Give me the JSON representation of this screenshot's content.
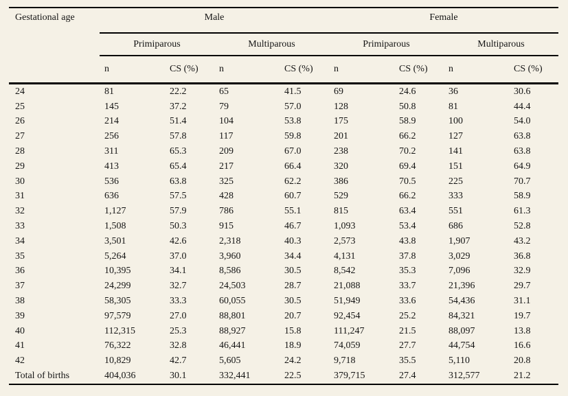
{
  "page": {
    "background_color": "#f5f1e6",
    "rule_color": "#000000",
    "text_color": "#141414"
  },
  "table": {
    "corner_header": "Gestational age",
    "group_headers": [
      "Male",
      "Female"
    ],
    "subgroup_headers": [
      "Primiparous",
      "Multiparous",
      "Primiparous",
      "Multiparous"
    ],
    "leaf_headers": [
      "n",
      "CS (%)",
      "n",
      "CS (%)",
      "n",
      "CS (%)",
      "n",
      "CS (%)"
    ],
    "rows": [
      {
        "label": "24",
        "values": [
          "81",
          "22.2",
          "65",
          "41.5",
          "69",
          "24.6",
          "36",
          "30.6"
        ]
      },
      {
        "label": "25",
        "values": [
          "145",
          "37.2",
          "79",
          "57.0",
          "128",
          "50.8",
          "81",
          "44.4"
        ]
      },
      {
        "label": "26",
        "values": [
          "214",
          "51.4",
          "104",
          "53.8",
          "175",
          "58.9",
          "100",
          "54.0"
        ]
      },
      {
        "label": "27",
        "values": [
          "256",
          "57.8",
          "117",
          "59.8",
          "201",
          "66.2",
          "127",
          "63.8"
        ]
      },
      {
        "label": "28",
        "values": [
          "311",
          "65.3",
          "209",
          "67.0",
          "238",
          "70.2",
          "141",
          "63.8"
        ]
      },
      {
        "label": "29",
        "values": [
          "413",
          "65.4",
          "217",
          "66.4",
          "320",
          "69.4",
          "151",
          "64.9"
        ]
      },
      {
        "label": "30",
        "values": [
          "536",
          "63.8",
          "325",
          "62.2",
          "386",
          "70.5",
          "225",
          "70.7"
        ]
      },
      {
        "label": "31",
        "values": [
          "636",
          "57.5",
          "428",
          "60.7",
          "529",
          "66.2",
          "333",
          "58.9"
        ]
      },
      {
        "label": "32",
        "values": [
          "1,127",
          "57.9",
          "786",
          "55.1",
          "815",
          "63.4",
          "551",
          "61.3"
        ]
      },
      {
        "label": "33",
        "values": [
          "1,508",
          "50.3",
          "915",
          "46.7",
          "1,093",
          "53.4",
          "686",
          "52.8"
        ]
      },
      {
        "label": "34",
        "values": [
          "3,501",
          "42.6",
          "2,318",
          "40.3",
          "2,573",
          "43.8",
          "1,907",
          "43.2"
        ]
      },
      {
        "label": "35",
        "values": [
          "5,264",
          "37.0",
          "3,960",
          "34.4",
          "4,131",
          "37.8",
          "3,029",
          "36.8"
        ]
      },
      {
        "label": "36",
        "values": [
          "10,395",
          "34.1",
          "8,586",
          "30.5",
          "8,542",
          "35.3",
          "7,096",
          "32.9"
        ]
      },
      {
        "label": "37",
        "values": [
          "24,299",
          "32.7",
          "24,503",
          "28.7",
          "21,088",
          "33.7",
          "21,396",
          "29.7"
        ]
      },
      {
        "label": "38",
        "values": [
          "58,305",
          "33.3",
          "60,055",
          "30.5",
          "51,949",
          "33.6",
          "54,436",
          "31.1"
        ]
      },
      {
        "label": "39",
        "values": [
          "97,579",
          "27.0",
          "88,801",
          "20.7",
          "92,454",
          "25.2",
          "84,321",
          "19.7"
        ]
      },
      {
        "label": "40",
        "values": [
          "112,315",
          "25.3",
          "88,927",
          "15.8",
          "111,247",
          "21.5",
          "88,097",
          "13.8"
        ]
      },
      {
        "label": "41",
        "values": [
          "76,322",
          "32.8",
          "46,441",
          "18.9",
          "74,059",
          "27.7",
          "44,754",
          "16.6"
        ]
      },
      {
        "label": "42",
        "values": [
          "10,829",
          "42.7",
          "5,605",
          "24.2",
          "9,718",
          "35.5",
          "5,110",
          "20.8"
        ]
      },
      {
        "label": "Total of births",
        "values": [
          "404,036",
          "30.1",
          "332,441",
          "22.5",
          "379,715",
          "27.4",
          "312,577",
          "21.2"
        ]
      }
    ]
  }
}
